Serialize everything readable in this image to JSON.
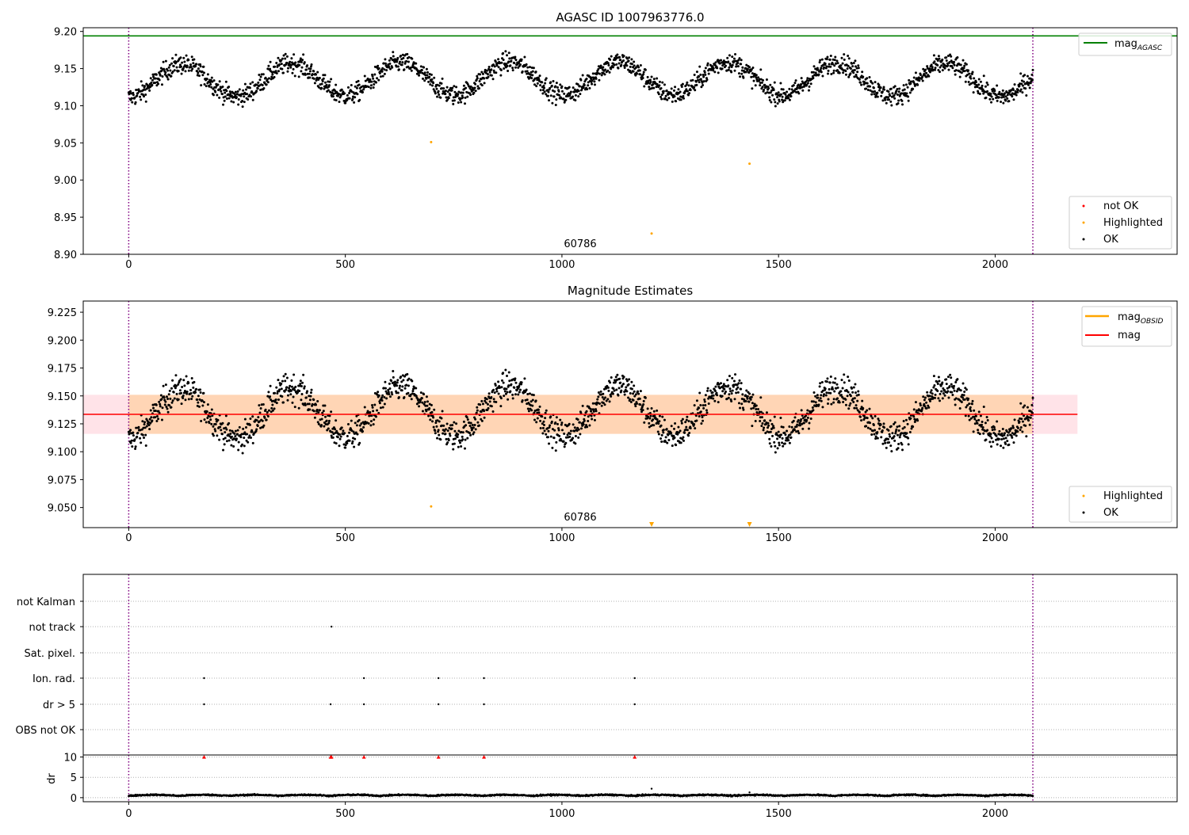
{
  "chart_data": [
    {
      "type": "scatter",
      "title": "AGASC ID 1007963776.0",
      "xlim": [
        -105,
        2420
      ],
      "ylim": [
        8.9,
        9.205
      ],
      "xticks": [
        "0",
        "500",
        "1000",
        "1500",
        "2000"
      ],
      "yticks": [
        "8.90",
        "8.95",
        "9.00",
        "9.05",
        "9.10",
        "9.15",
        "9.20"
      ],
      "obs_boundaries": [
        0,
        2087
      ],
      "obsid_label": "60786",
      "reference_lines": [
        {
          "name": "mag_AGASC",
          "value": 9.194,
          "color": "#008000"
        }
      ],
      "legend_top": {
        "text": "mag",
        "sub": "AGASC"
      },
      "legend_bottom": [
        "not OK",
        "Highlighted",
        "OK"
      ],
      "series": [
        {
          "name": "OK",
          "color": "#000000",
          "x_range": [
            0,
            2087
          ],
          "n_points": 2088,
          "mean": 9.133
        },
        {
          "name": "Highlighted",
          "color": "#ffa500",
          "points": [
            [
              698,
              9.051
            ],
            [
              1207,
              8.928
            ],
            [
              1433,
              9.022
            ]
          ]
        },
        {
          "name": "not OK",
          "color": "#ff0000",
          "points": []
        }
      ]
    },
    {
      "type": "scatter",
      "title": "Magnitude Estimates",
      "xlim": [
        -105,
        2420
      ],
      "ylim": [
        9.032,
        9.235
      ],
      "xticks": [
        "0",
        "500",
        "1000",
        "1500",
        "2000"
      ],
      "yticks": [
        "9.050",
        "9.075",
        "9.100",
        "9.125",
        "9.150",
        "9.175",
        "9.200",
        "9.225"
      ],
      "obs_boundaries": [
        0,
        2087
      ],
      "obsid_label": "60786",
      "mag": 9.1335,
      "mag_band": [
        9.116,
        9.151
      ],
      "mag_obsid_band": [
        9.116,
        9.151
      ],
      "band_x_range": [
        -105,
        2190
      ],
      "legend_top": [
        {
          "text": "mag",
          "sub": "OBSID",
          "color": "#ffa500"
        },
        {
          "text": "mag",
          "sub": "",
          "color": "#ff0000"
        }
      ],
      "legend_bottom": [
        "Highlighted",
        "OK"
      ],
      "highlighted_points": [
        [
          698,
          9.051
        ]
      ],
      "offscale_markers": [
        1207,
        1433
      ]
    },
    {
      "type": "scatter",
      "ylabels": [
        "not Kalman",
        "not track",
        "Sat. pixel.",
        "Ion. rad.",
        "dr > 5",
        "OBS not OK"
      ],
      "flags": {
        "not Kalman": [],
        "not track": [
          468
        ],
        "Sat. pixel.": [],
        "Ion. rad.": [
          174,
          543,
          715,
          820,
          1168
        ],
        "dr > 5": [
          174,
          466,
          543,
          715,
          820,
          1168
        ],
        "OBS not OK": []
      },
      "xticks": [
        "0",
        "500",
        "1000",
        "1500",
        "2000"
      ]
    },
    {
      "type": "scatter",
      "ylabel": "dr",
      "ylim": [
        -1,
        10.5
      ],
      "yticks": [
        "0",
        "5",
        "10"
      ],
      "xticks": [
        "0",
        "500",
        "1000",
        "1500",
        "2000"
      ],
      "dr_high_points": [
        174,
        466,
        468,
        543,
        715,
        820,
        1168
      ],
      "extra_points": [
        [
          1207,
          2.2
        ],
        [
          1433,
          1.3
        ]
      ]
    }
  ]
}
